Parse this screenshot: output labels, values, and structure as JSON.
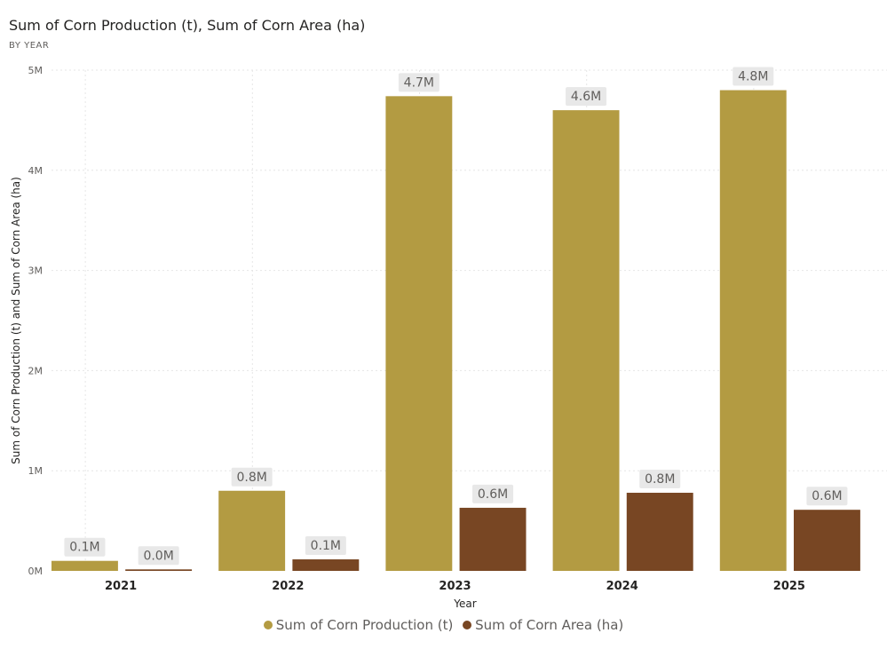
{
  "header": {
    "title": "Sum of Corn Production (t), Sum of Corn Area (ha)",
    "subtitle": "BY YEAR"
  },
  "chart_data": {
    "type": "bar",
    "title": "Sum of Corn Production (t), Sum of Corn Area (ha)",
    "xlabel": "Year",
    "ylabel": "Sum of Corn Production (t) and Sum of Corn Area (ha)",
    "categories": [
      "2021",
      "2022",
      "2023",
      "2024",
      "2025"
    ],
    "ylim": [
      0,
      5000000
    ],
    "yticks": [
      0,
      1000000,
      2000000,
      3000000,
      4000000,
      5000000
    ],
    "ytick_labels": [
      "0M",
      "1M",
      "2M",
      "3M",
      "4M",
      "5M"
    ],
    "series": [
      {
        "name": "Sum of Corn Production (t)",
        "color": "#b39b42",
        "values": [
          100000,
          800000,
          4740000,
          4600000,
          4800000
        ],
        "labels": [
          "0.1M",
          "0.8M",
          "4.7M",
          "4.6M",
          "4.8M"
        ]
      },
      {
        "name": "Sum of Corn Area (ha)",
        "color": "#784623",
        "values": [
          15000,
          115000,
          630000,
          780000,
          610000
        ],
        "labels": [
          "0.0M",
          "0.1M",
          "0.6M",
          "0.8M",
          "0.6M"
        ]
      }
    ],
    "grid": true,
    "legend": "bottom-center"
  }
}
